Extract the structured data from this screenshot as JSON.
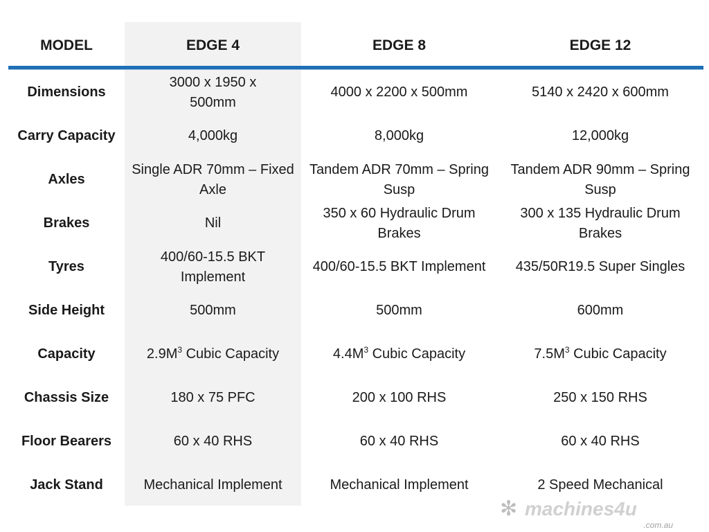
{
  "header": {
    "model": "MODEL",
    "cols": [
      "EDGE 4",
      "EDGE 8",
      "EDGE 12"
    ]
  },
  "rows": [
    {
      "label": "Dimensions",
      "values": [
        "3000 x 1950 x 500mm",
        "4000 x 2200 x 500mm",
        "5140 x 2420 x 600mm"
      ]
    },
    {
      "label": "Carry Capacity",
      "values": [
        "4,000kg",
        "8,000kg",
        "12,000kg"
      ]
    },
    {
      "label": "Axles",
      "values": [
        "Single ADR 70mm – Fixed Axle",
        "Tandem ADR 70mm – Spring Susp",
        "Tandem ADR 90mm – Spring Susp"
      ]
    },
    {
      "label": "Brakes",
      "values": [
        "Nil",
        "350 x 60 Hydraulic Drum Brakes",
        "300 x 135 Hydraulic Drum Brakes"
      ]
    },
    {
      "label": "Tyres",
      "values": [
        "400/60-15.5 BKT Implement",
        "400/60-15.5 BKT Implement",
        "435/50R19.5 Super Singles"
      ]
    },
    {
      "label": "Side Height",
      "values": [
        "500mm",
        "500mm",
        "600mm"
      ]
    },
    {
      "label": "Capacity",
      "values": [
        {
          "pre": "2.9M",
          "sup": "3",
          "post": " Cubic Capacity"
        },
        {
          "pre": "4.4M",
          "sup": "3",
          "post": " Cubic Capacity"
        },
        {
          "pre": "7.5M",
          "sup": "3",
          "post": " Cubic Capacity"
        }
      ]
    },
    {
      "label": "Chassis Size",
      "values": [
        "180 x 75 PFC",
        "200 x 100 RHS",
        "250 x 150 RHS"
      ]
    },
    {
      "label": "Floor Bearers",
      "values": [
        "60 x 40 RHS",
        "60 x 40 RHS",
        "60 x 40 RHS"
      ]
    },
    {
      "label": "Jack Stand",
      "values": [
        "Mechanical Implement",
        "Mechanical Implement",
        "2 Speed Mechanical"
      ]
    }
  ],
  "watermark": {
    "brand": "machines4u",
    "domain": ".com.au"
  },
  "colors": {
    "accent": "#1f6fb5",
    "shade": "#f2f2f2"
  }
}
